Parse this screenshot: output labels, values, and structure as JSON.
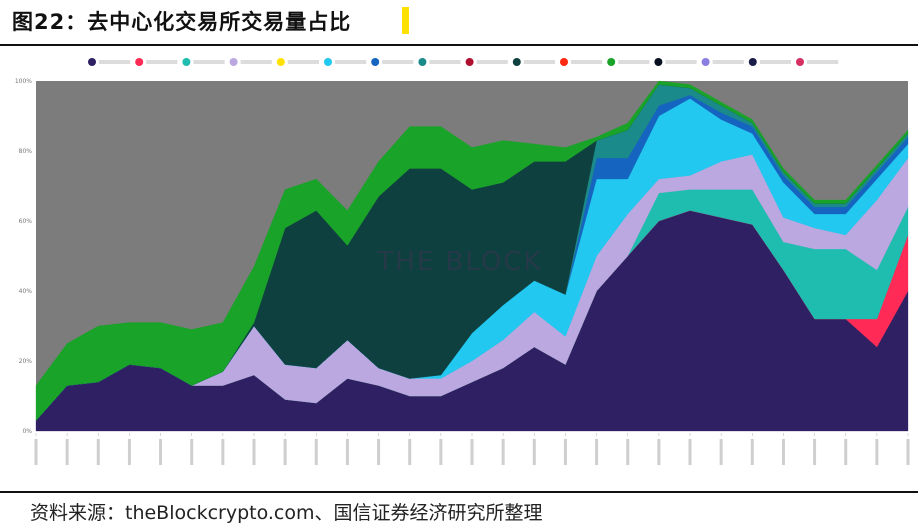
{
  "figure": {
    "title": "图22：去中心化交易所交易量占比",
    "source": "资料来源：theBlockcrypto.com、国信证券经济研究所整理",
    "watermark": "THE BLOCK",
    "accent_color": "#ffe100"
  },
  "chart_data": {
    "type": "area",
    "stacked": true,
    "normalized": true,
    "ylim": [
      0,
      100
    ],
    "yticks": [
      "0%",
      "20%",
      "40%",
      "60%",
      "80%",
      "100%"
    ],
    "grid": false,
    "legend_position": "top",
    "x_labels_legible": false,
    "x": [
      "1",
      "2",
      "3",
      "4",
      "5",
      "6",
      "7",
      "8",
      "9",
      "10",
      "11",
      "12",
      "13",
      "14",
      "15",
      "16",
      "17",
      "18",
      "19",
      "20",
      "21",
      "22",
      "23",
      "24",
      "25",
      "26",
      "27",
      "28",
      "29"
    ],
    "series": [
      {
        "color": "#2e2063",
        "values": [
          3,
          13,
          14,
          19,
          18,
          13,
          13,
          16,
          9,
          8,
          15,
          13,
          10,
          10,
          14,
          18,
          24,
          19,
          40,
          50,
          60,
          63,
          61,
          59,
          46,
          32,
          32,
          24,
          40
        ]
      },
      {
        "color": "#ff2a55",
        "values": [
          0,
          0,
          0,
          0,
          0,
          0,
          0,
          0,
          0,
          0,
          0,
          0,
          0,
          0,
          0,
          0,
          0,
          0,
          0,
          0,
          0,
          0,
          0,
          0,
          0,
          0,
          0,
          8,
          16
        ]
      },
      {
        "color": "#1fbcb0",
        "values": [
          0,
          0,
          0,
          0,
          0,
          0,
          0,
          0,
          0,
          0,
          0,
          0,
          0,
          0,
          0,
          0,
          0,
          0,
          0,
          0,
          8,
          6,
          8,
          10,
          8,
          20,
          20,
          14,
          8
        ]
      },
      {
        "color": "#bba8e0",
        "values": [
          0,
          0,
          0,
          0,
          0,
          0,
          4,
          14,
          10,
          10,
          11,
          5,
          5,
          5,
          6,
          8,
          10,
          8,
          10,
          12,
          4,
          4,
          8,
          10,
          7,
          6,
          4,
          20,
          14
        ]
      },
      {
        "color": "#ffe200",
        "values": [
          0,
          0,
          0,
          0,
          0,
          0,
          0,
          0,
          0,
          0,
          0,
          0,
          0,
          0,
          0,
          0,
          0,
          0,
          0,
          0,
          0,
          0,
          0,
          0,
          0,
          0,
          0,
          0,
          0
        ]
      },
      {
        "color": "#22c8f0",
        "values": [
          0,
          0,
          0,
          0,
          0,
          0,
          0,
          0,
          0,
          0,
          0,
          0,
          0,
          1,
          8,
          10,
          9,
          12,
          22,
          10,
          18,
          22,
          12,
          6,
          10,
          4,
          6,
          6,
          4
        ]
      },
      {
        "color": "#1565c0",
        "values": [
          0,
          0,
          0,
          0,
          0,
          0,
          0,
          0,
          0,
          0,
          0,
          0,
          0,
          0,
          0,
          0,
          0,
          0,
          6,
          6,
          3,
          1,
          2,
          2,
          2,
          2,
          2,
          2,
          2
        ]
      },
      {
        "color": "#1a8a8a",
        "values": [
          0,
          0,
          0,
          0,
          0,
          0,
          0,
          0,
          0,
          0,
          0,
          0,
          0,
          0,
          0,
          0,
          0,
          0,
          5,
          8,
          6,
          2,
          2,
          1,
          1,
          1,
          1,
          1,
          1
        ]
      },
      {
        "color": "#b01030",
        "values": [
          0,
          0,
          0,
          0,
          0,
          0,
          0,
          0,
          0,
          0,
          0,
          0,
          0,
          0,
          0,
          0,
          0,
          0,
          0,
          0,
          0,
          0,
          0,
          0,
          0,
          0,
          0,
          0,
          0
        ]
      },
      {
        "color": "#0e4040",
        "values": [
          0,
          0,
          0,
          0,
          0,
          0,
          0,
          1,
          39,
          45,
          27,
          49,
          60,
          59,
          41,
          35,
          34,
          38,
          0,
          0,
          0,
          0,
          0,
          0,
          0,
          0,
          0,
          0,
          0
        ]
      },
      {
        "color": "#ff2a10",
        "values": [
          0,
          0,
          0,
          0,
          0,
          0,
          0,
          0,
          0,
          0,
          0,
          0,
          0,
          0,
          0,
          0,
          0,
          0,
          0,
          0,
          0,
          0,
          0,
          0,
          0,
          0,
          0,
          0,
          0
        ]
      },
      {
        "color": "#19a328",
        "values": [
          10,
          12,
          16,
          12,
          13,
          16,
          14,
          16,
          11,
          9,
          10,
          10,
          12,
          12,
          12,
          12,
          5,
          4,
          1,
          2,
          1,
          1,
          1,
          1,
          1,
          1,
          1,
          1,
          1
        ]
      },
      {
        "color": "#081020",
        "values": [
          0,
          0,
          0,
          0,
          0,
          0,
          0,
          0,
          0,
          0,
          0,
          0,
          0,
          0,
          0,
          0,
          0,
          0,
          0,
          0,
          0,
          0,
          0,
          0,
          0,
          0,
          0,
          0,
          0
        ]
      },
      {
        "color": "#8a7fe0",
        "values": [
          0,
          0,
          0,
          0,
          0,
          0,
          0,
          0,
          0,
          0,
          0,
          0,
          0,
          0,
          0,
          0,
          0,
          0,
          0,
          0,
          0,
          0,
          0,
          0,
          0,
          0,
          0,
          0,
          0
        ]
      },
      {
        "color": "#1a1c48",
        "values": [
          0,
          0,
          0,
          0,
          0,
          0,
          0,
          0,
          0,
          0,
          0,
          0,
          0,
          0,
          0,
          0,
          0,
          0,
          0,
          0,
          0,
          0,
          0,
          0,
          0,
          0,
          0,
          0,
          0
        ]
      },
      {
        "color": "#d63060",
        "values": [
          0,
          0,
          0,
          0,
          0,
          0,
          0,
          0,
          0,
          0,
          0,
          0,
          0,
          0,
          0,
          0,
          0,
          0,
          0,
          0,
          0,
          0,
          0,
          0,
          0,
          0,
          0,
          0,
          0
        ]
      }
    ]
  }
}
